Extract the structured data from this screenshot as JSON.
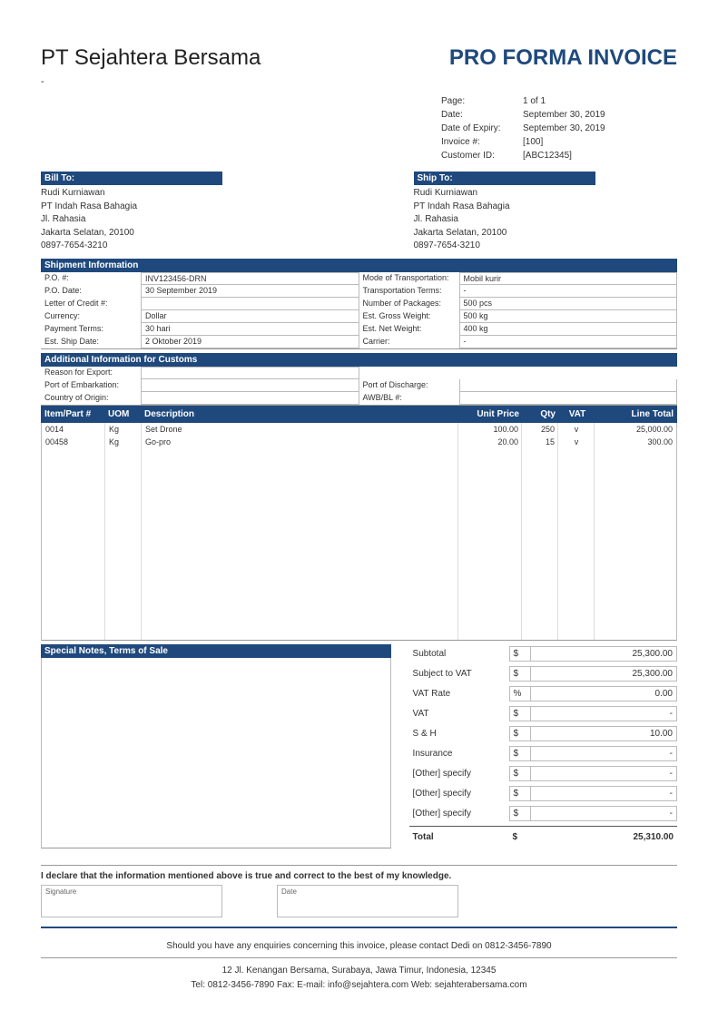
{
  "colors": {
    "accent": "#1f497d",
    "border": "#bbbbbb",
    "text": "#333333"
  },
  "header": {
    "company": "PT Sejahtera Bersama",
    "dash": "-",
    "title": "PRO FORMA INVOICE"
  },
  "meta": {
    "page_label": "Page:",
    "page_value": "1 of  1",
    "date_label": "Date:",
    "date_value": "September 30, 2019",
    "expiry_label": "Date of Expiry:",
    "expiry_value": "September 30, 2019",
    "invoice_label": "Invoice #:",
    "invoice_value": "[100]",
    "cust_label": "Customer ID:",
    "cust_value": "[ABC12345]"
  },
  "bill_to": {
    "heading": "Bill To:",
    "name": "Rudi Kurniawan",
    "company": "PT Indah Rasa Bahagia",
    "street": "Jl. Rahasia",
    "city": "Jakarta Selatan, 20100",
    "phone": "0897-7654-3210"
  },
  "ship_to": {
    "heading": "Ship To:",
    "name": "Rudi Kurniawan",
    "company": "PT Indah Rasa Bahagia",
    "street": "Jl. Rahasia",
    "city": "Jakarta Selatan, 20100",
    "phone": "0897-7654-3210"
  },
  "shipment": {
    "heading": "Shipment Information",
    "left": [
      {
        "label": "P.O. #:",
        "value": "INV123456-DRN"
      },
      {
        "label": "P.O. Date:",
        "value": "30 September 2019"
      },
      {
        "label": "Letter of Credit #:",
        "value": ""
      },
      {
        "label": "Currency:",
        "value": "Dollar"
      },
      {
        "label": "Payment Terms:",
        "value": "30 hari"
      },
      {
        "label": "Est. Ship Date:",
        "value": "2 Oktober 2019"
      }
    ],
    "right": [
      {
        "label": "Mode of Transportation:",
        "value": "Mobil kurir"
      },
      {
        "label": "Transportation Terms:",
        "value": "-"
      },
      {
        "label": "Number of Packages:",
        "value": "500 pcs"
      },
      {
        "label": "Est. Gross Weight:",
        "value": "500 kg"
      },
      {
        "label": "Est. Net Weight:",
        "value": "400 kg"
      },
      {
        "label": "Carrier:",
        "value": "-"
      }
    ]
  },
  "customs": {
    "heading": "Additional Information for Customs",
    "left": [
      {
        "label": "Reason for Export:",
        "value": ""
      },
      {
        "label": "Port of Embarkation:",
        "value": ""
      },
      {
        "label": "Country of Origin:",
        "value": ""
      }
    ],
    "right": [
      {
        "label": "",
        "value": ""
      },
      {
        "label": "Port of Discharge:",
        "value": ""
      },
      {
        "label": "AWB/BL #:",
        "value": ""
      }
    ]
  },
  "items": {
    "headers": {
      "item": "Item/Part #",
      "uom": "UOM",
      "desc": "Description",
      "price": "Unit Price",
      "qty": "Qty",
      "vat": "VAT",
      "total": "Line Total"
    },
    "rows": [
      {
        "item": "0014",
        "uom": "Kg",
        "desc": "Set Drone",
        "price": "100.00",
        "qty": "250",
        "vat": "v",
        "total": "25,000.00"
      },
      {
        "item": "00458",
        "uom": "Kg",
        "desc": "Go-pro",
        "price": "20.00",
        "qty": "15",
        "vat": "v",
        "total": "300.00"
      }
    ]
  },
  "notes_heading": "Special Notes, Terms of Sale",
  "totals": {
    "rows": [
      {
        "label": "Subtotal",
        "sym": "$",
        "val": "25,300.00"
      },
      {
        "label": "Subject to VAT",
        "sym": "$",
        "val": "25,300.00"
      },
      {
        "label": "VAT Rate",
        "sym": "%",
        "val": "0.00"
      },
      {
        "label": "VAT",
        "sym": "$",
        "val": "-"
      },
      {
        "label": "S & H",
        "sym": "$",
        "val": "10.00"
      },
      {
        "label": "Insurance",
        "sym": "$",
        "val": "-"
      },
      {
        "label": "[Other] specify",
        "sym": "$",
        "val": "-"
      },
      {
        "label": "[Other] specify",
        "sym": "$",
        "val": "-"
      },
      {
        "label": "[Other] specify",
        "sym": "$",
        "val": "-"
      }
    ],
    "total_label": "Total",
    "total_sym": "$",
    "total_val": "25,310.00"
  },
  "declaration": "I declare that the information mentioned above is true and correct to the best of my knowledge.",
  "sig": {
    "signature": "Signature",
    "date": "Date"
  },
  "footer": {
    "contact": "Should you have any enquiries concerning this invoice, please contact Dedi on 0812-3456-7890",
    "address": "12 Jl. Kenangan Bersama, Surabaya, Jawa Timur, Indonesia, 12345",
    "line2": "Tel: 0812-3456-7890 Fax:  E-mail: info@sejahtera.com Web: sejahterabersama.com"
  }
}
